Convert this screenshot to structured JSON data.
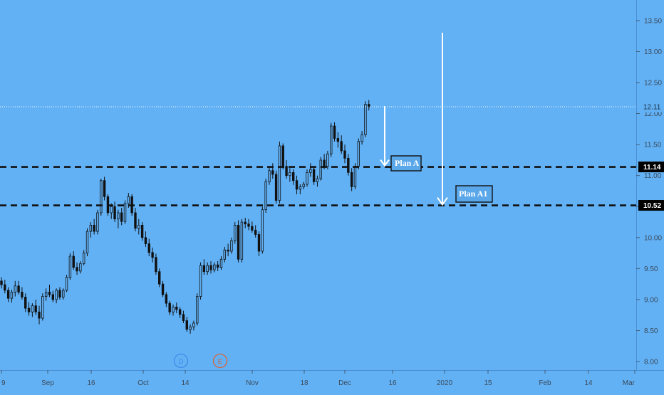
{
  "colors": {
    "background": "#62b1f5",
    "axis_text": "#3b4a5a",
    "candle": "#111111",
    "level_line": "#111111",
    "arrow": "#ffffff",
    "plan_box_fill": "#5aa7ea",
    "badge_fill": "#000000",
    "badge_text": "#ffffff",
    "last_price_line": "#ffffff",
    "event_dividend": "#3f8be8",
    "event_earnings": "#d7653b"
  },
  "chart_data": {
    "type": "candlestick",
    "ylim": [
      7.8,
      13.7
    ],
    "y_ticks": [
      "8.00",
      "8.50",
      "9.00",
      "9.50",
      "10.00",
      "10.50",
      "11.00",
      "11.50",
      "12.00",
      "12.50",
      "13.00",
      "13.50"
    ],
    "x_ticks": [
      "9",
      "Sep",
      "16",
      "Oct",
      "14",
      "Nov",
      "18",
      "Dec",
      "16",
      "2020",
      "15",
      "Feb",
      "14",
      "Mar"
    ],
    "last_price": {
      "value": 12.11,
      "label": "12.11"
    },
    "levels": [
      {
        "value": 11.14,
        "label": "11.14",
        "plan": "Plan A"
      },
      {
        "value": 10.52,
        "label": "10.52",
        "plan": "Plan A1"
      }
    ],
    "events": [
      {
        "letter": "D",
        "type": "dividend"
      },
      {
        "letter": "E",
        "type": "earnings"
      }
    ],
    "ohlc": [
      [
        9.3,
        9.36,
        9.18,
        9.24
      ],
      [
        9.24,
        9.32,
        9.1,
        9.15
      ],
      [
        9.15,
        9.2,
        8.96,
        9.02
      ],
      [
        9.02,
        9.16,
        8.95,
        9.12
      ],
      [
        9.12,
        9.3,
        9.05,
        9.22
      ],
      [
        9.22,
        9.3,
        9.08,
        9.12
      ],
      [
        9.12,
        9.2,
        9.0,
        9.04
      ],
      [
        9.04,
        9.1,
        8.8,
        8.86
      ],
      [
        8.86,
        8.96,
        8.74,
        8.8
      ],
      [
        8.8,
        8.94,
        8.72,
        8.9
      ],
      [
        8.9,
        9.0,
        8.75,
        8.8
      ],
      [
        8.8,
        8.9,
        8.6,
        8.7
      ],
      [
        8.7,
        9.1,
        8.66,
        9.05
      ],
      [
        9.05,
        9.18,
        8.98,
        9.12
      ],
      [
        9.12,
        9.24,
        9.04,
        9.08
      ],
      [
        9.08,
        9.14,
        8.96,
        9.0
      ],
      [
        9.0,
        9.18,
        8.94,
        9.15
      ],
      [
        9.15,
        9.2,
        9.0,
        9.04
      ],
      [
        9.04,
        9.18,
        9.0,
        9.15
      ],
      [
        9.15,
        9.4,
        9.12,
        9.36
      ],
      [
        9.36,
        9.75,
        9.32,
        9.7
      ],
      [
        9.7,
        9.78,
        9.48,
        9.52
      ],
      [
        9.52,
        9.6,
        9.4,
        9.46
      ],
      [
        9.46,
        9.62,
        9.42,
        9.58
      ],
      [
        9.58,
        9.8,
        9.55,
        9.75
      ],
      [
        9.75,
        10.15,
        9.7,
        10.1
      ],
      [
        10.1,
        10.25,
        10.0,
        10.2
      ],
      [
        10.2,
        10.3,
        10.05,
        10.1
      ],
      [
        10.1,
        10.45,
        10.05,
        10.4
      ],
      [
        10.4,
        10.95,
        10.35,
        10.92
      ],
      [
        10.92,
        10.98,
        10.6,
        10.66
      ],
      [
        10.66,
        10.7,
        10.35,
        10.4
      ],
      [
        10.4,
        10.55,
        10.3,
        10.5
      ],
      [
        10.5,
        10.58,
        10.25,
        10.3
      ],
      [
        10.3,
        10.45,
        10.15,
        10.4
      ],
      [
        10.4,
        10.48,
        10.2,
        10.26
      ],
      [
        10.26,
        10.6,
        10.22,
        10.55
      ],
      [
        10.55,
        10.72,
        10.48,
        10.66
      ],
      [
        10.66,
        10.7,
        10.35,
        10.4
      ],
      [
        10.4,
        10.48,
        10.1,
        10.15
      ],
      [
        10.15,
        10.3,
        10.05,
        10.2
      ],
      [
        10.2,
        10.25,
        9.95,
        10.0
      ],
      [
        10.0,
        10.1,
        9.85,
        9.9
      ],
      [
        9.9,
        9.98,
        9.7,
        9.76
      ],
      [
        9.76,
        9.84,
        9.6,
        9.68
      ],
      [
        9.68,
        9.74,
        9.4,
        9.45
      ],
      [
        9.45,
        9.5,
        9.2,
        9.25
      ],
      [
        9.25,
        9.3,
        9.04,
        9.08
      ],
      [
        9.08,
        9.12,
        8.88,
        8.94
      ],
      [
        8.94,
        8.98,
        8.75,
        8.8
      ],
      [
        8.8,
        8.92,
        8.74,
        8.88
      ],
      [
        8.88,
        8.95,
        8.78,
        8.84
      ],
      [
        8.84,
        8.88,
        8.7,
        8.76
      ],
      [
        8.76,
        8.82,
        8.62,
        8.66
      ],
      [
        8.66,
        8.72,
        8.48,
        8.52
      ],
      [
        8.52,
        8.6,
        8.45,
        8.56
      ],
      [
        8.56,
        8.66,
        8.5,
        8.62
      ],
      [
        8.62,
        9.1,
        8.58,
        9.05
      ],
      [
        9.05,
        9.6,
        9.0,
        9.55
      ],
      [
        9.55,
        9.65,
        9.4,
        9.45
      ],
      [
        9.45,
        9.6,
        9.4,
        9.55
      ],
      [
        9.55,
        9.62,
        9.42,
        9.48
      ],
      [
        9.48,
        9.6,
        9.44,
        9.56
      ],
      [
        9.56,
        9.62,
        9.46,
        9.52
      ],
      [
        9.52,
        9.7,
        9.48,
        9.65
      ],
      [
        9.65,
        9.85,
        9.6,
        9.8
      ],
      [
        9.8,
        9.9,
        9.7,
        9.78
      ],
      [
        9.78,
        10.0,
        9.74,
        9.95
      ],
      [
        9.95,
        10.25,
        9.9,
        10.2
      ],
      [
        10.2,
        10.28,
        9.6,
        9.65
      ],
      [
        9.65,
        10.3,
        9.6,
        10.25
      ],
      [
        10.25,
        10.32,
        10.15,
        10.22
      ],
      [
        10.22,
        10.3,
        10.12,
        10.18
      ],
      [
        10.18,
        10.26,
        10.08,
        10.12
      ],
      [
        10.12,
        10.2,
        10.0,
        10.05
      ],
      [
        10.05,
        10.1,
        9.7,
        9.78
      ],
      [
        9.78,
        10.5,
        9.74,
        10.45
      ],
      [
        10.45,
        10.95,
        10.4,
        10.9
      ],
      [
        10.9,
        11.15,
        10.85,
        11.08
      ],
      [
        11.08,
        11.2,
        10.95,
        11.02
      ],
      [
        11.02,
        11.08,
        10.55,
        10.6
      ],
      [
        10.6,
        11.55,
        10.55,
        11.48
      ],
      [
        11.48,
        11.52,
        11.1,
        11.15
      ],
      [
        11.15,
        11.25,
        10.95,
        11.0
      ],
      [
        11.0,
        11.12,
        10.9,
        11.05
      ],
      [
        11.05,
        11.1,
        10.85,
        10.92
      ],
      [
        10.92,
        11.0,
        10.7,
        10.78
      ],
      [
        10.78,
        10.86,
        10.7,
        10.82
      ],
      [
        10.82,
        10.9,
        10.78,
        10.86
      ],
      [
        10.86,
        11.1,
        10.82,
        11.05
      ],
      [
        11.05,
        11.2,
        10.98,
        11.1
      ],
      [
        11.1,
        11.15,
        10.85,
        10.9
      ],
      [
        10.9,
        11.0,
        10.82,
        10.95
      ],
      [
        10.95,
        11.3,
        10.92,
        11.25
      ],
      [
        11.25,
        11.35,
        11.1,
        11.15
      ],
      [
        11.15,
        11.4,
        11.1,
        11.35
      ],
      [
        11.35,
        11.85,
        11.3,
        11.8
      ],
      [
        11.8,
        11.86,
        11.55,
        11.6
      ],
      [
        11.6,
        11.7,
        11.45,
        11.55
      ],
      [
        11.55,
        11.65,
        11.35,
        11.4
      ],
      [
        11.4,
        11.5,
        11.2,
        11.28
      ],
      [
        11.28,
        11.35,
        11.0,
        11.05
      ],
      [
        11.05,
        11.12,
        10.75,
        10.82
      ],
      [
        10.82,
        11.2,
        10.78,
        11.15
      ],
      [
        11.15,
        11.6,
        11.1,
        11.55
      ],
      [
        11.55,
        11.72,
        11.5,
        11.66
      ],
      [
        11.66,
        12.2,
        11.62,
        12.15
      ],
      [
        12.15,
        12.22,
        12.05,
        12.11
      ]
    ]
  }
}
